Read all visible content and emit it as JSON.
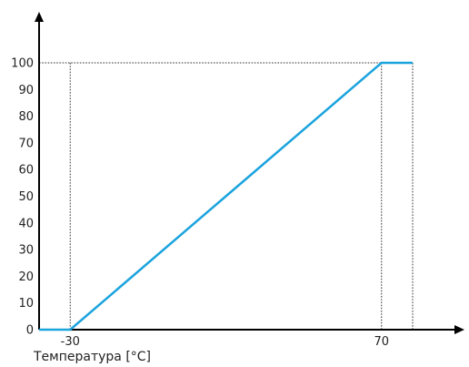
{
  "chart_data": {
    "type": "line",
    "x": [
      -40,
      -30,
      70,
      80
    ],
    "series": [
      {
        "values": [
          0,
          0,
          100,
          100
        ]
      }
    ],
    "xlabel": "Температура [°C]",
    "ylabel": "",
    "x_ticks": [
      {
        "value": -30,
        "label": "-30"
      },
      {
        "value": 70,
        "label": "70"
      }
    ],
    "y_ticks": [
      {
        "value": 0,
        "label": "0"
      },
      {
        "value": 10,
        "label": "10"
      },
      {
        "value": 20,
        "label": "20"
      },
      {
        "value": 30,
        "label": "30"
      },
      {
        "value": 40,
        "label": "40"
      },
      {
        "value": 50,
        "label": "50"
      },
      {
        "value": 60,
        "label": "60"
      },
      {
        "value": 70,
        "label": "70"
      },
      {
        "value": 80,
        "label": "80"
      },
      {
        "value": 90,
        "label": "90"
      },
      {
        "value": 100,
        "label": "100"
      }
    ],
    "guides": [
      {
        "x": -30,
        "y": 100
      },
      {
        "x": 70,
        "y": 100
      },
      {
        "x": 80,
        "y": 100
      }
    ],
    "xlim": [
      -40,
      80
    ],
    "ylim": [
      0,
      100
    ],
    "grid": false,
    "guide_style": "dotted",
    "line_color": "#1aa3dd",
    "axis_color": "#000000"
  }
}
